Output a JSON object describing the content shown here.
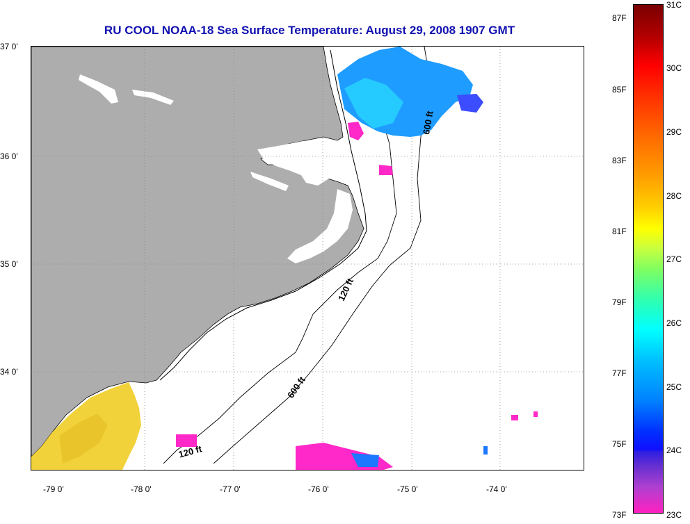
{
  "title": "RU COOL  NOAA-18  Sea Surface Temperature:  August 29, 2008 1907 GMT",
  "lat_labels": [
    "37 0'",
    "36 0'",
    "35 0'",
    "34 0'"
  ],
  "lon_labels": [
    "-79 0'",
    "-78 0'",
    "-77 0'",
    "-76 0'",
    "-75 0'",
    "-74 0'"
  ],
  "contour_labels": [
    "600 ft",
    "120 ft",
    "600 ft",
    "120 ft"
  ],
  "colorbar": {
    "fahrenheit": [
      "87F",
      "85F",
      "83F",
      "81F",
      "79F",
      "77F",
      "75F",
      "73F"
    ],
    "celsius": [
      "31C",
      "30C",
      "29C",
      "28C",
      "27C",
      "26C",
      "25C",
      "24C",
      "23C"
    ]
  },
  "colors": {
    "land": "#adadad",
    "title": "#1010b0",
    "warm_patch": "#f2d23a",
    "cool_patch": "#1e78ff",
    "cold_patch": "#ff28c8"
  }
}
